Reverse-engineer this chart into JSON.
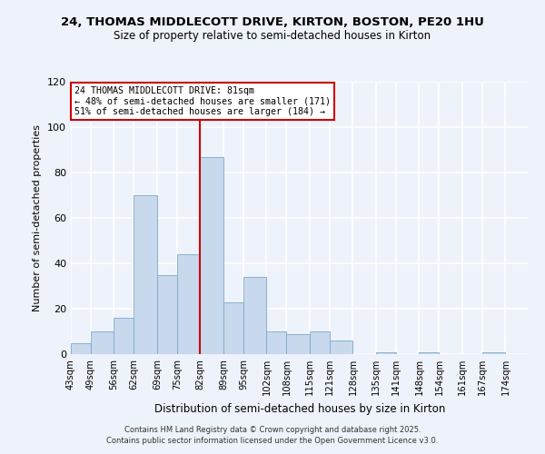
{
  "title_line1": "24, THOMAS MIDDLECOTT DRIVE, KIRTON, BOSTON, PE20 1HU",
  "title_line2": "Size of property relative to semi-detached houses in Kirton",
  "xlabel": "Distribution of semi-detached houses by size in Kirton",
  "ylabel": "Number of semi-detached properties",
  "bin_labels": [
    "43sqm",
    "49sqm",
    "56sqm",
    "62sqm",
    "69sqm",
    "75sqm",
    "82sqm",
    "89sqm",
    "95sqm",
    "102sqm",
    "108sqm",
    "115sqm",
    "121sqm",
    "128sqm",
    "135sqm",
    "141sqm",
    "148sqm",
    "154sqm",
    "161sqm",
    "167sqm",
    "174sqm"
  ],
  "bin_edges": [
    43,
    49,
    56,
    62,
    69,
    75,
    82,
    89,
    95,
    102,
    108,
    115,
    121,
    128,
    135,
    141,
    148,
    154,
    161,
    167,
    174
  ],
  "bar_widths": [
    6,
    7,
    6,
    7,
    6,
    7,
    7,
    6,
    7,
    6,
    7,
    6,
    7,
    7,
    6,
    7,
    6,
    7,
    6,
    7
  ],
  "bar_heights": [
    5,
    10,
    16,
    70,
    35,
    44,
    87,
    23,
    34,
    10,
    9,
    10,
    6,
    0,
    1,
    0,
    1,
    0,
    0,
    1
  ],
  "bar_color": "#c8d8ed",
  "bar_edge_color": "#7aaac8",
  "vline_x": 82,
  "vline_color": "#cc0000",
  "annotation_title": "24 THOMAS MIDDLECOTT DRIVE: 81sqm",
  "annotation_line1": "← 48% of semi-detached houses are smaller (171)",
  "annotation_line2": "51% of semi-detached houses are larger (184) →",
  "annotation_box_facecolor": "#ffffff",
  "annotation_box_edgecolor": "#cc0000",
  "ylim": [
    0,
    120
  ],
  "yticks": [
    0,
    20,
    40,
    60,
    80,
    100,
    120
  ],
  "footer_line1": "Contains HM Land Registry data © Crown copyright and database right 2025.",
  "footer_line2": "Contains public sector information licensed under the Open Government Licence v3.0.",
  "background_color": "#eef2fa",
  "plot_bg_color": "#eef2fa",
  "grid_color": "#ffffff"
}
